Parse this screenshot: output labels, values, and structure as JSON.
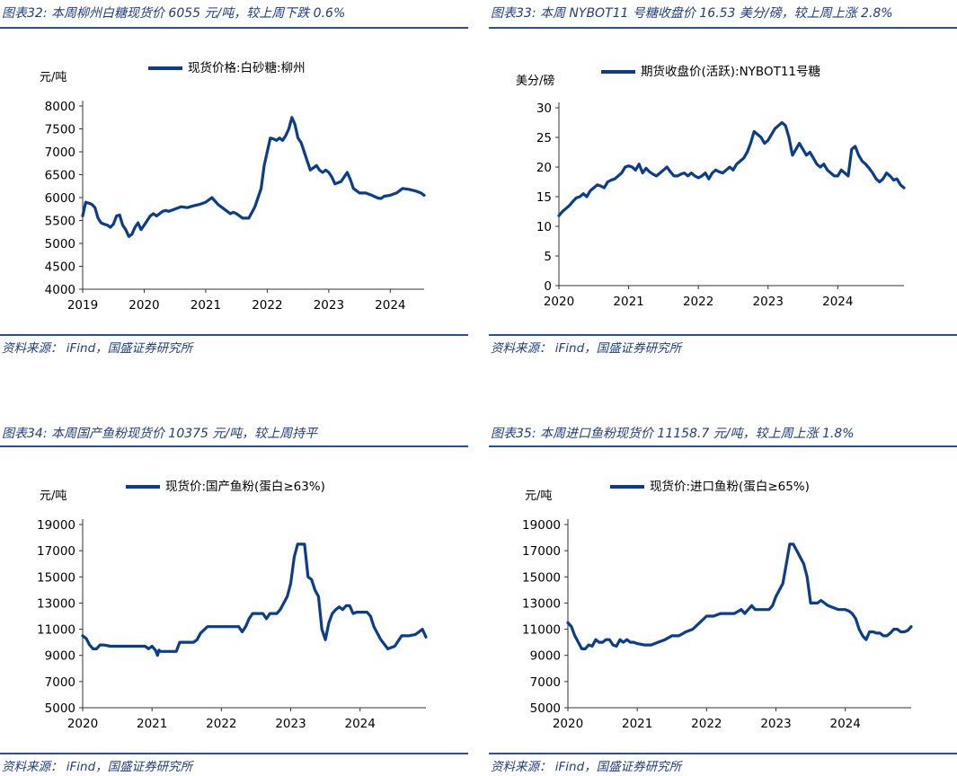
{
  "panels": [
    {
      "title": "图表32:  本周柳州白糖现货价 6055 元/吨，较上周下跌 0.6%",
      "source": "资料来源： iFind，国盛证券研究所"
    },
    {
      "title": "图表33:  本周 NYBOT11 号糖收盘价 16.53 美分/磅，较上周上涨 2.8%",
      "source": "资料来源： iFind，国盛证券研究所"
    },
    {
      "title": "图表34:  本周国产鱼粉现货价 10375 元/吨，较上周持平",
      "source": "资料来源： iFind，国盛证券研究所"
    },
    {
      "title": "图表35:  本周进口鱼粉现货价 11158.7 元/吨，较上周上涨 1.8%",
      "source": "资料来源： iFind，国盛证券研究所"
    }
  ],
  "colors": {
    "line": "#0a3d91",
    "title": "#1f3c88",
    "rule": "#2a4f9a"
  },
  "chart_data": [
    {
      "type": "line",
      "ylabel": "元/吨",
      "ylim": [
        4000,
        8000
      ],
      "yticks": [
        4000,
        4500,
        5000,
        5500,
        6000,
        6500,
        7000,
        7500,
        8000
      ],
      "xlim": [
        2019.0,
        2024.55
      ],
      "xticks": [
        "2019",
        "2020",
        "2021",
        "2022",
        "2023",
        "2024"
      ],
      "series": [
        {
          "name": "现货价格:白砂糖:柳州",
          "x": [
            2019.0,
            2019.05,
            2019.1,
            2019.15,
            2019.2,
            2019.25,
            2019.3,
            2019.35,
            2019.4,
            2019.45,
            2019.5,
            2019.55,
            2019.6,
            2019.65,
            2019.7,
            2019.75,
            2019.8,
            2019.85,
            2019.9,
            2019.95,
            2020.0,
            2020.05,
            2020.1,
            2020.15,
            2020.2,
            2020.25,
            2020.3,
            2020.35,
            2020.4,
            2020.5,
            2020.6,
            2020.7,
            2020.8,
            2020.9,
            2021.0,
            2021.1,
            2021.2,
            2021.3,
            2021.35,
            2021.4,
            2021.45,
            2021.5,
            2021.6,
            2021.7,
            2021.8,
            2021.9,
            2021.95,
            2022.0,
            2022.05,
            2022.1,
            2022.15,
            2022.2,
            2022.25,
            2022.3,
            2022.35,
            2022.4,
            2022.45,
            2022.5,
            2022.55,
            2022.6,
            2022.65,
            2022.7,
            2022.75,
            2022.8,
            2022.85,
            2022.9,
            2022.95,
            2023.0,
            2023.05,
            2023.1,
            2023.2,
            2023.3,
            2023.35,
            2023.4,
            2023.5,
            2023.6,
            2023.7,
            2023.75,
            2023.8,
            2023.85,
            2023.9,
            2024.0,
            2024.1,
            2024.15,
            2024.2,
            2024.3,
            2024.4,
            2024.5,
            2024.55
          ],
          "y": [
            5600,
            5900,
            5880,
            5850,
            5780,
            5550,
            5450,
            5420,
            5400,
            5350,
            5420,
            5600,
            5620,
            5400,
            5300,
            5150,
            5200,
            5350,
            5450,
            5300,
            5400,
            5500,
            5600,
            5650,
            5600,
            5650,
            5700,
            5720,
            5700,
            5750,
            5800,
            5780,
            5820,
            5850,
            5900,
            6000,
            5850,
            5750,
            5700,
            5650,
            5680,
            5650,
            5550,
            5550,
            5800,
            6200,
            6700,
            7000,
            7300,
            7280,
            7250,
            7300,
            7250,
            7350,
            7500,
            7750,
            7600,
            7300,
            7200,
            7000,
            6800,
            6600,
            6650,
            6700,
            6600,
            6550,
            6600,
            6550,
            6450,
            6300,
            6350,
            6550,
            6400,
            6200,
            6100,
            6100,
            6050,
            6020,
            5990,
            5980,
            6030,
            6050,
            6100,
            6150,
            6200,
            6180,
            6150,
            6100,
            6050
          ]
        }
      ]
    },
    {
      "type": "line",
      "ylabel": "美分/磅",
      "ylim": [
        0,
        30
      ],
      "yticks": [
        0,
        5,
        10,
        15,
        20,
        25,
        30
      ],
      "xlim": [
        2020.0,
        2024.95
      ],
      "xticks": [
        "2020",
        "2021",
        "2022",
        "2023",
        "2024"
      ],
      "series": [
        {
          "name": "期货收盘价(活跃):NYBOT11号糖",
          "x": [
            2020.0,
            2020.05,
            2020.1,
            2020.15,
            2020.2,
            2020.25,
            2020.3,
            2020.35,
            2020.4,
            2020.45,
            2020.5,
            2020.55,
            2020.6,
            2020.65,
            2020.7,
            2020.75,
            2020.8,
            2020.85,
            2020.9,
            2020.95,
            2021.0,
            2021.05,
            2021.1,
            2021.15,
            2021.2,
            2021.25,
            2021.3,
            2021.35,
            2021.4,
            2021.45,
            2021.5,
            2021.55,
            2021.6,
            2021.65,
            2021.7,
            2021.75,
            2021.8,
            2021.85,
            2021.9,
            2021.95,
            2022.0,
            2022.05,
            2022.1,
            2022.15,
            2022.2,
            2022.25,
            2022.3,
            2022.35,
            2022.4,
            2022.45,
            2022.5,
            2022.55,
            2022.6,
            2022.65,
            2022.7,
            2022.75,
            2022.8,
            2022.85,
            2022.9,
            2022.95,
            2023.0,
            2023.05,
            2023.1,
            2023.15,
            2023.2,
            2023.25,
            2023.3,
            2023.35,
            2023.4,
            2023.45,
            2023.5,
            2023.55,
            2023.6,
            2023.65,
            2023.7,
            2023.75,
            2023.8,
            2023.85,
            2023.9,
            2023.95,
            2024.0,
            2024.05,
            2024.1,
            2024.15,
            2024.2,
            2024.25,
            2024.3,
            2024.35,
            2024.4,
            2024.45,
            2024.5,
            2024.55,
            2024.6,
            2024.65,
            2024.7,
            2024.75,
            2024.8,
            2024.85,
            2024.9,
            2024.95
          ],
          "y": [
            11.8,
            12.5,
            13.0,
            13.5,
            14.2,
            14.8,
            15.0,
            15.5,
            15.0,
            16.0,
            16.5,
            17.0,
            16.8,
            16.5,
            17.5,
            17.8,
            18.0,
            18.5,
            19.0,
            20.0,
            20.2,
            20.0,
            19.5,
            20.5,
            19.0,
            19.8,
            19.2,
            18.8,
            18.5,
            19.0,
            19.5,
            20.0,
            19.2,
            18.5,
            18.5,
            18.8,
            19.0,
            18.5,
            19.0,
            18.5,
            18.2,
            18.5,
            19.0,
            18.0,
            19.0,
            19.5,
            19.2,
            19.0,
            19.5,
            20.0,
            19.5,
            20.5,
            21.0,
            21.5,
            22.5,
            24.0,
            26.0,
            25.5,
            25.0,
            24.0,
            24.5,
            25.5,
            26.5,
            27.0,
            27.5,
            27.0,
            25.0,
            22.0,
            23.0,
            24.0,
            23.0,
            22.0,
            22.5,
            21.5,
            20.5,
            20.0,
            20.5,
            19.5,
            19.0,
            18.5,
            18.5,
            19.5,
            19.0,
            18.5,
            23.0,
            23.5,
            22.0,
            21.0,
            20.5,
            19.8,
            19.0,
            18.0,
            17.5,
            18.0,
            19.0,
            18.5,
            17.8,
            18.0,
            17.0,
            16.5
          ]
        }
      ]
    },
    {
      "type": "line",
      "ylabel": "元/吨",
      "ylim": [
        5000,
        19000
      ],
      "yticks": [
        5000,
        7000,
        9000,
        11000,
        13000,
        15000,
        17000,
        19000
      ],
      "xlim": [
        2020.0,
        2024.95
      ],
      "xticks": [
        "2020",
        "2021",
        "2022",
        "2023",
        "2024"
      ],
      "series": [
        {
          "name": "现货价:国产鱼粉(蛋白≥63%)",
          "x": [
            2020.0,
            2020.05,
            2020.1,
            2020.15,
            2020.2,
            2020.25,
            2020.3,
            2020.4,
            2020.5,
            2020.6,
            2020.7,
            2020.8,
            2020.9,
            2020.95,
            2021.0,
            2021.05,
            2021.08,
            2021.1,
            2021.12,
            2021.2,
            2021.3,
            2021.35,
            2021.4,
            2021.5,
            2021.6,
            2021.65,
            2021.7,
            2021.8,
            2021.9,
            2022.0,
            2022.1,
            2022.2,
            2022.25,
            2022.3,
            2022.35,
            2022.4,
            2022.45,
            2022.5,
            2022.55,
            2022.6,
            2022.65,
            2022.7,
            2022.75,
            2022.8,
            2022.85,
            2022.9,
            2022.95,
            2023.0,
            2023.05,
            2023.1,
            2023.15,
            2023.2,
            2023.25,
            2023.3,
            2023.35,
            2023.4,
            2023.45,
            2023.5,
            2023.55,
            2023.6,
            2023.65,
            2023.7,
            2023.75,
            2023.8,
            2023.85,
            2023.9,
            2023.95,
            2024.0,
            2024.05,
            2024.1,
            2024.15,
            2024.2,
            2024.3,
            2024.4,
            2024.5,
            2024.6,
            2024.7,
            2024.8,
            2024.85,
            2024.9,
            2024.95
          ],
          "y": [
            10500,
            10300,
            9800,
            9500,
            9500,
            9800,
            9800,
            9700,
            9700,
            9700,
            9700,
            9700,
            9700,
            9500,
            9700,
            9400,
            9000,
            9400,
            9300,
            9300,
            9300,
            9300,
            10000,
            10000,
            10000,
            10200,
            10700,
            11200,
            11200,
            11200,
            11200,
            11200,
            11200,
            10800,
            11200,
            11800,
            12200,
            12200,
            12200,
            12200,
            11800,
            12200,
            12200,
            12200,
            12500,
            13000,
            13500,
            14500,
            16500,
            17500,
            17500,
            17500,
            15000,
            14800,
            14000,
            13500,
            11000,
            10200,
            11500,
            12200,
            12500,
            12700,
            12500,
            12800,
            12800,
            12200,
            12300,
            12300,
            12300,
            12300,
            12000,
            11200,
            10200,
            9500,
            9700,
            10500,
            10500,
            10600,
            10800,
            11000,
            10400
          ]
        }
      ]
    },
    {
      "type": "line",
      "ylabel": "元/吨",
      "ylim": [
        5000,
        19000
      ],
      "yticks": [
        5000,
        7000,
        9000,
        11000,
        13000,
        15000,
        17000,
        19000
      ],
      "xlim": [
        2020.0,
        2024.95
      ],
      "xticks": [
        "2020",
        "2021",
        "2022",
        "2023",
        "2024"
      ],
      "series": [
        {
          "name": "现货价:进口鱼粉(蛋白≥65%)",
          "x": [
            2020.0,
            2020.05,
            2020.1,
            2020.15,
            2020.2,
            2020.25,
            2020.3,
            2020.35,
            2020.4,
            2020.45,
            2020.5,
            2020.55,
            2020.6,
            2020.65,
            2020.7,
            2020.75,
            2020.8,
            2020.85,
            2020.9,
            2020.95,
            2021.0,
            2021.1,
            2021.2,
            2021.3,
            2021.4,
            2021.5,
            2021.6,
            2021.7,
            2021.8,
            2021.9,
            2022.0,
            2022.1,
            2022.2,
            2022.3,
            2022.4,
            2022.5,
            2022.55,
            2022.6,
            2022.65,
            2022.7,
            2022.75,
            2022.8,
            2022.85,
            2022.9,
            2022.95,
            2023.0,
            2023.05,
            2023.1,
            2023.15,
            2023.2,
            2023.25,
            2023.3,
            2023.35,
            2023.4,
            2023.45,
            2023.5,
            2023.55,
            2023.6,
            2023.65,
            2023.7,
            2023.75,
            2023.8,
            2023.9,
            2024.0,
            2024.05,
            2024.1,
            2024.15,
            2024.2,
            2024.25,
            2024.3,
            2024.35,
            2024.4,
            2024.45,
            2024.5,
            2024.55,
            2024.6,
            2024.65,
            2024.7,
            2024.75,
            2024.8,
            2024.85,
            2024.9,
            2024.95
          ],
          "y": [
            11500,
            11200,
            10500,
            10000,
            9500,
            9500,
            9800,
            9700,
            10200,
            10000,
            10000,
            10200,
            10200,
            9800,
            9700,
            10200,
            10000,
            10200,
            10000,
            10000,
            9900,
            9800,
            9800,
            10000,
            10200,
            10500,
            10500,
            10800,
            11000,
            11500,
            12000,
            12000,
            12200,
            12200,
            12200,
            12500,
            12200,
            12500,
            12800,
            12500,
            12500,
            12500,
            12500,
            12500,
            12800,
            13500,
            14000,
            14500,
            16000,
            17500,
            17500,
            17000,
            16500,
            16000,
            15000,
            13000,
            13000,
            13000,
            13200,
            13000,
            12800,
            12700,
            12500,
            12500,
            12400,
            12200,
            11800,
            11000,
            10500,
            10200,
            10800,
            10800,
            10700,
            10700,
            10500,
            10500,
            10700,
            11000,
            11000,
            10800,
            10800,
            10900,
            11200
          ]
        }
      ]
    }
  ]
}
